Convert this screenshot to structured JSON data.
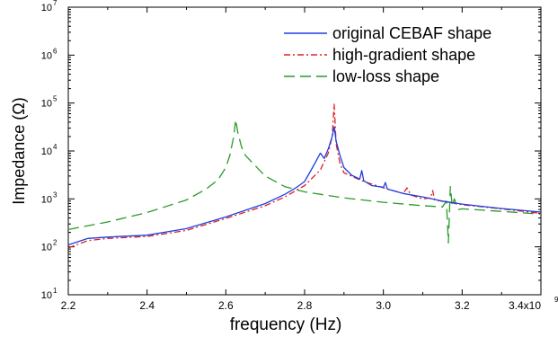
{
  "chart_data": {
    "type": "line",
    "title": "",
    "xlabel": "frequency (Hz)",
    "ylabel": "Impedance (Ω)",
    "xlim": [
      2200000000.0,
      3400000000.0
    ],
    "ylim": [
      10,
      10000000
    ],
    "yscale": "log",
    "grid": false,
    "legend_position": "top-right",
    "x_ticks": [
      2200000000.0,
      2400000000.0,
      2600000000.0,
      2800000000.0,
      3000000000.0,
      3200000000.0,
      3400000000.0
    ],
    "x_tick_labels": [
      "2.2",
      "2.4",
      "2.6",
      "2.8",
      "3.0",
      "3.2",
      "3.4x10"
    ],
    "x_tick_exponent": "9",
    "y_ticks": [
      10,
      100,
      1000,
      10000,
      100000,
      1000000,
      10000000
    ],
    "y_tick_labels": [
      {
        "base": "10",
        "exp": "1"
      },
      {
        "base": "10",
        "exp": "2"
      },
      {
        "base": "10",
        "exp": "3"
      },
      {
        "base": "10",
        "exp": "4"
      },
      {
        "base": "10",
        "exp": "5"
      },
      {
        "base": "10",
        "exp": "6"
      },
      {
        "base": "10",
        "exp": "7"
      }
    ],
    "series": [
      {
        "name": "original CEBAF shape",
        "color": "#1f3fe0",
        "style": "solid",
        "x": [
          2200000000.0,
          2250000000.0,
          2300000000.0,
          2400000000.0,
          2500000000.0,
          2600000000.0,
          2700000000.0,
          2750000000.0,
          2780000000.0,
          2800000000.0,
          2820000000.0,
          2840000000.0,
          2850000000.0,
          2860000000.0,
          2870000000.0,
          2875000000.0,
          2880000000.0,
          2890000000.0,
          2900000000.0,
          2920000000.0,
          2940000000.0,
          2945000000.0,
          2950000000.0,
          2970000000.0,
          3000000000.0,
          3005000000.0,
          3010000000.0,
          3050000000.0,
          3100000000.0,
          3150000000.0,
          3200000000.0,
          3250000000.0,
          3300000000.0,
          3400000000.0
        ],
        "y": [
          110,
          150,
          160,
          175,
          240,
          420,
          800,
          1250,
          1750,
          2300,
          4500,
          9000,
          7000,
          11000,
          20000,
          32000,
          16000,
          8000,
          4500,
          3100,
          2600,
          3900,
          2400,
          1900,
          1750,
          2200,
          1600,
          1300,
          1100,
          900,
          780,
          700,
          630,
          530
        ]
      },
      {
        "name": "high-gradient shape",
        "color": "#e02020",
        "style": "dashdot",
        "x": [
          2200000000.0,
          2250000000.0,
          2300000000.0,
          2400000000.0,
          2500000000.0,
          2600000000.0,
          2700000000.0,
          2750000000.0,
          2800000000.0,
          2840000000.0,
          2860000000.0,
          2870000000.0,
          2875000000.0,
          2880000000.0,
          2890000000.0,
          2900000000.0,
          2950000000.0,
          3000000000.0,
          3050000000.0,
          3060000000.0,
          3070000000.0,
          3100000000.0,
          3120000000.0,
          3125000000.0,
          3130000000.0,
          3200000000.0,
          3300000000.0,
          3400000000.0
        ],
        "y": [
          95,
          135,
          150,
          165,
          220,
          390,
          720,
          1100,
          1900,
          4000,
          9000,
          20000,
          95000,
          14000,
          5500,
          3500,
          2300,
          1700,
          1300,
          1700,
          1200,
          1000,
          1050,
          1500,
          950,
          760,
          620,
          500
        ]
      },
      {
        "name": "low-loss shape",
        "color": "#2a9a2a",
        "style": "dashed",
        "x": [
          2200000000.0,
          2300000000.0,
          2400000000.0,
          2500000000.0,
          2550000000.0,
          2580000000.0,
          2600000000.0,
          2610000000.0,
          2620000000.0,
          2625000000.0,
          2630000000.0,
          2640000000.0,
          2650000000.0,
          2700000000.0,
          2750000000.0,
          2800000000.0,
          2900000000.0,
          3000000000.0,
          3100000000.0,
          3150000000.0,
          3160000000.0,
          3165000000.0,
          3170000000.0,
          3175000000.0,
          3180000000.0,
          3190000000.0,
          3200000000.0,
          3300000000.0,
          3400000000.0
        ],
        "y": [
          230,
          330,
          520,
          950,
          1600,
          2500,
          4500,
          8000,
          20000,
          45000,
          25000,
          12000,
          8000,
          3000,
          1800,
          1400,
          1050,
          850,
          720,
          680,
          900,
          120,
          1800,
          700,
          1000,
          600,
          620,
          550,
          480
        ]
      }
    ]
  }
}
